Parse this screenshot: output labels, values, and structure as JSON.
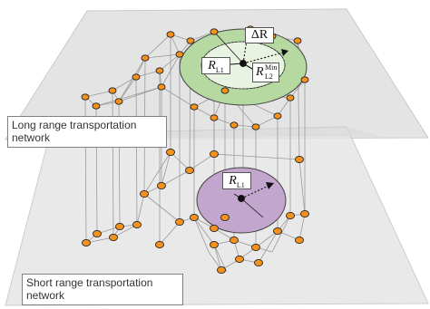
{
  "diagram": {
    "layers": {
      "top_caption_line1": "Long range transportation",
      "top_caption_line2": "network",
      "bottom_caption_line1": "Short range transportation",
      "bottom_caption_line2": "network"
    },
    "labels": {
      "delta_r": "ΔR",
      "rl1_top_base": "R",
      "rl1_top_sub": "L1",
      "rl2_base": "R",
      "rl2_sub": "L2",
      "rl2_sup": "Min",
      "rl1_bottom_base": "R",
      "rl1_bottom_sub": "L1"
    },
    "colors": {
      "node_fill": "#f5921e",
      "node_stroke": "#222222",
      "plane_fill": "#dcdcdc",
      "annulus_fill": "#b6d9a2",
      "disk_fill": "#c3a6cd",
      "edge": "#9a9a9a"
    }
  }
}
